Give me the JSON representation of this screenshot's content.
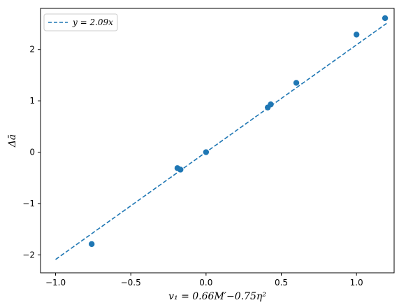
{
  "chart_data": {
    "type": "scatter",
    "xlabel": "v₁ = 0.66M′−0.75η²",
    "ylabel": "Δā",
    "xlim": [
      -1.1,
      1.25
    ],
    "ylim": [
      -2.35,
      2.8
    ],
    "x_ticks": [
      -1.0,
      -0.5,
      0.0,
      0.5,
      1.0
    ],
    "y_ticks": [
      -2,
      -1,
      0,
      1,
      2
    ],
    "x_tick_labels": [
      "−1.0",
      "−0.5",
      "0.0",
      "0.5",
      "1.0"
    ],
    "y_tick_labels": [
      "−2",
      "−1",
      "0",
      "1",
      "2"
    ],
    "grid": false,
    "legend_position": "top-left",
    "points": {
      "x": [
        -0.76,
        -0.19,
        -0.17,
        0.0,
        0.41,
        0.43,
        0.6,
        1.0,
        1.19
      ],
      "y": [
        -1.79,
        -0.31,
        -0.34,
        0.0,
        0.87,
        0.93,
        1.35,
        2.29,
        2.61
      ]
    },
    "fit_line": {
      "name": "y = 2.09x",
      "slope": 2.09,
      "x_range": [
        -1.0,
        1.2
      ],
      "style": "dashed"
    },
    "colors": {
      "series": "#1f77b4"
    }
  }
}
